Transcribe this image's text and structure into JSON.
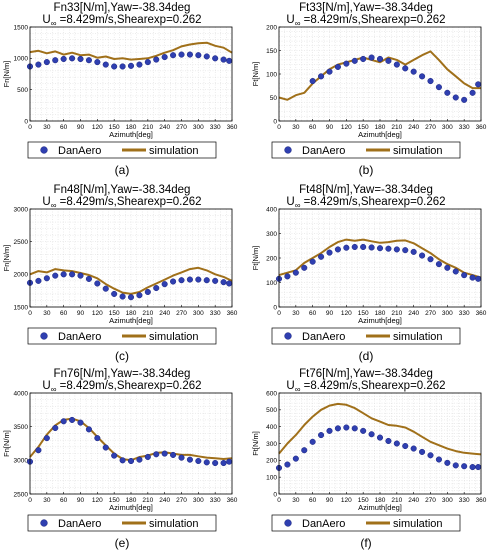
{
  "colors": {
    "danaero": "#2f3fb0",
    "danaero_edge": "#1a237e",
    "simulation": "#a0701a",
    "grid": "#d9d9d9",
    "axes": "#000000"
  },
  "legend": {
    "danaero": "DanAero",
    "simulation": "simulation"
  },
  "chart_data": [
    {
      "type": "line",
      "panel_label": "(a)",
      "title": "Fn33[N/m],Yaw=-38.34deg",
      "subtitle_prefix": "U",
      "subtitle_sub": "∞",
      "subtitle_rest": " =8.429m/s,Shearexp=0.262",
      "xlabel": "Azimuth[deg]",
      "ylabel": "Fn[N/m]",
      "xlim": [
        0,
        360
      ],
      "ylim": [
        0,
        1500
      ],
      "xticks": [
        0,
        30,
        60,
        90,
        120,
        150,
        180,
        210,
        240,
        270,
        300,
        330,
        360
      ],
      "yticks": [
        0,
        500,
        1000,
        1500
      ],
      "grid": true,
      "legend_position": "bottom",
      "series": [
        {
          "name": "DanAero",
          "marker": "circle",
          "x": [
            0,
            15,
            30,
            45,
            60,
            75,
            90,
            105,
            120,
            135,
            150,
            165,
            180,
            195,
            210,
            225,
            240,
            255,
            270,
            285,
            300,
            315,
            330,
            345,
            355
          ],
          "y": [
            870,
            900,
            940,
            970,
            990,
            1000,
            990,
            970,
            940,
            900,
            870,
            870,
            880,
            900,
            940,
            980,
            1020,
            1050,
            1060,
            1060,
            1050,
            1030,
            1000,
            980,
            960
          ]
        },
        {
          "name": "simulation",
          "marker": "none",
          "x": [
            0,
            15,
            30,
            45,
            60,
            75,
            90,
            105,
            120,
            135,
            150,
            165,
            180,
            195,
            210,
            225,
            240,
            255,
            270,
            285,
            300,
            315,
            330,
            345,
            360
          ],
          "y": [
            1100,
            1120,
            1080,
            1110,
            1060,
            1090,
            1050,
            1060,
            1010,
            1030,
            990,
            1000,
            980,
            990,
            1000,
            1040,
            1090,
            1130,
            1190,
            1220,
            1240,
            1250,
            1200,
            1170,
            1090
          ]
        }
      ]
    },
    {
      "type": "line",
      "panel_label": "(b)",
      "title": "Ft33[N/m],Yaw=-38.34deg",
      "subtitle_prefix": "U",
      "subtitle_sub": "∞",
      "subtitle_rest": " =8.429m/s,Shearexp=0.262",
      "xlabel": "Azimuth[deg]",
      "ylabel": "Ft[N/m]",
      "xlim": [
        0,
        360
      ],
      "ylim": [
        0,
        200
      ],
      "xticks": [
        0,
        30,
        60,
        90,
        120,
        150,
        180,
        210,
        240,
        270,
        300,
        330,
        360
      ],
      "yticks": [
        0,
        50,
        100,
        150,
        200
      ],
      "grid": true,
      "legend_position": "bottom",
      "series": [
        {
          "name": "DanAero",
          "marker": "circle",
          "x": [
            60,
            75,
            90,
            105,
            120,
            135,
            150,
            165,
            180,
            195,
            210,
            225,
            240,
            255,
            270,
            285,
            300,
            315,
            330,
            345,
            355
          ],
          "y": [
            85,
            95,
            105,
            115,
            122,
            128,
            132,
            135,
            132,
            128,
            120,
            112,
            105,
            95,
            85,
            72,
            60,
            50,
            45,
            60,
            78
          ]
        },
        {
          "name": "simulation",
          "marker": "none",
          "x": [
            0,
            15,
            30,
            45,
            60,
            75,
            90,
            105,
            120,
            135,
            150,
            165,
            180,
            195,
            210,
            225,
            240,
            255,
            270,
            285,
            300,
            315,
            330,
            345,
            360
          ],
          "y": [
            50,
            45,
            55,
            60,
            80,
            95,
            110,
            120,
            125,
            130,
            135,
            130,
            125,
            135,
            130,
            120,
            130,
            140,
            148,
            130,
            110,
            95,
            80,
            70,
            70
          ]
        }
      ]
    },
    {
      "type": "line",
      "panel_label": "(c)",
      "title": "Fn48[N/m],Yaw=-38.34deg",
      "subtitle_prefix": "U",
      "subtitle_sub": "∞",
      "subtitle_rest": " =8.429m/s,Shearexp=0.262",
      "xlabel": "Azimuth[deg]",
      "ylabel": "Fn[N/m]",
      "xlim": [
        0,
        360
      ],
      "ylim": [
        1500,
        3000
      ],
      "xticks": [
        0,
        30,
        60,
        90,
        120,
        150,
        180,
        210,
        240,
        270,
        300,
        330,
        360
      ],
      "yticks": [
        1500,
        2000,
        2500,
        3000
      ],
      "grid": true,
      "legend_position": "bottom",
      "series": [
        {
          "name": "DanAero",
          "marker": "circle",
          "x": [
            0,
            15,
            30,
            45,
            60,
            75,
            90,
            105,
            120,
            135,
            150,
            165,
            180,
            195,
            210,
            225,
            240,
            255,
            270,
            285,
            300,
            315,
            330,
            345,
            355
          ],
          "y": [
            1870,
            1900,
            1940,
            1980,
            2000,
            2000,
            1980,
            1930,
            1860,
            1780,
            1700,
            1660,
            1650,
            1680,
            1730,
            1790,
            1850,
            1890,
            1910,
            1920,
            1920,
            1910,
            1900,
            1880,
            1860
          ]
        },
        {
          "name": "simulation",
          "marker": "none",
          "x": [
            0,
            15,
            30,
            45,
            60,
            75,
            90,
            105,
            120,
            135,
            150,
            165,
            180,
            195,
            210,
            225,
            240,
            255,
            270,
            285,
            300,
            315,
            330,
            345,
            360
          ],
          "y": [
            2000,
            2050,
            2030,
            2080,
            2060,
            2050,
            2020,
            1990,
            1940,
            1850,
            1780,
            1720,
            1700,
            1730,
            1800,
            1860,
            1920,
            1980,
            2030,
            2080,
            2100,
            2060,
            2000,
            1960,
            1900
          ]
        }
      ]
    },
    {
      "type": "line",
      "panel_label": "(d)",
      "title": "Ft48[N/m],Yaw=-38.34deg",
      "subtitle_prefix": "U",
      "subtitle_sub": "∞",
      "subtitle_rest": " =8.429m/s,Shearexp=0.262",
      "xlabel": "Azimuth[deg]",
      "ylabel": "Ft[N/m]",
      "xlim": [
        0,
        360
      ],
      "ylim": [
        0,
        400
      ],
      "xticks": [
        0,
        30,
        60,
        90,
        120,
        150,
        180,
        210,
        240,
        270,
        300,
        330,
        360
      ],
      "yticks": [
        0,
        100,
        200,
        300,
        400
      ],
      "grid": true,
      "legend_position": "bottom",
      "series": [
        {
          "name": "DanAero",
          "marker": "circle",
          "x": [
            0,
            15,
            30,
            45,
            60,
            75,
            90,
            105,
            120,
            135,
            150,
            165,
            180,
            195,
            210,
            225,
            240,
            255,
            270,
            285,
            300,
            315,
            330,
            345,
            355
          ],
          "y": [
            115,
            125,
            140,
            160,
            185,
            205,
            222,
            235,
            242,
            245,
            245,
            243,
            240,
            238,
            235,
            232,
            225,
            210,
            195,
            175,
            160,
            145,
            130,
            120,
            115
          ]
        },
        {
          "name": "simulation",
          "marker": "none",
          "x": [
            0,
            15,
            30,
            45,
            60,
            75,
            90,
            105,
            120,
            135,
            150,
            165,
            180,
            195,
            210,
            225,
            240,
            255,
            270,
            285,
            300,
            315,
            330,
            345,
            360
          ],
          "y": [
            130,
            140,
            150,
            180,
            200,
            220,
            245,
            265,
            275,
            270,
            275,
            268,
            262,
            265,
            270,
            272,
            260,
            240,
            220,
            195,
            175,
            160,
            140,
            130,
            120
          ]
        }
      ]
    },
    {
      "type": "line",
      "panel_label": "(e)",
      "title": "Fn76[N/m],Yaw=-38.34deg",
      "subtitle_prefix": "U",
      "subtitle_sub": "∞",
      "subtitle_rest": " =8.429m/s,Shearexp=0.262",
      "xlabel": "Azimuth[deg]",
      "ylabel": "Fn[N/m]",
      "xlim": [
        0,
        360
      ],
      "ylim": [
        2500,
        4000
      ],
      "xticks": [
        0,
        30,
        60,
        90,
        120,
        150,
        180,
        210,
        240,
        270,
        300,
        330,
        360
      ],
      "yticks": [
        2500,
        3000,
        3500,
        4000
      ],
      "grid": true,
      "legend_position": "bottom",
      "series": [
        {
          "name": "DanAero",
          "marker": "circle",
          "x": [
            0,
            15,
            30,
            45,
            60,
            75,
            90,
            105,
            120,
            135,
            150,
            165,
            180,
            195,
            210,
            225,
            240,
            255,
            270,
            285,
            300,
            315,
            330,
            345,
            355
          ],
          "y": [
            2980,
            3150,
            3330,
            3480,
            3580,
            3600,
            3560,
            3460,
            3330,
            3190,
            3070,
            3000,
            2990,
            3010,
            3050,
            3090,
            3100,
            3080,
            3040,
            3010,
            2990,
            2970,
            2960,
            2960,
            2980
          ]
        },
        {
          "name": "simulation",
          "marker": "none",
          "x": [
            0,
            15,
            30,
            45,
            60,
            75,
            90,
            105,
            120,
            135,
            150,
            165,
            180,
            195,
            210,
            225,
            240,
            255,
            270,
            285,
            300,
            315,
            330,
            345,
            360
          ],
          "y": [
            3050,
            3200,
            3380,
            3520,
            3600,
            3620,
            3580,
            3480,
            3350,
            3220,
            3100,
            3020,
            3000,
            3050,
            3070,
            3110,
            3120,
            3100,
            3080,
            3080,
            3060,
            3040,
            3030,
            3020,
            3030
          ]
        }
      ]
    },
    {
      "type": "line",
      "panel_label": "(f)",
      "title": "Ft76[N/m],Yaw=-38.34deg",
      "subtitle_prefix": "U",
      "subtitle_sub": "∞",
      "subtitle_rest": " =8.429m/s,Shearexp=0.262",
      "xlabel": "Azimuth[deg]",
      "ylabel": "Ft[N/m]",
      "xlim": [
        0,
        360
      ],
      "ylim": [
        0,
        600
      ],
      "xticks": [
        0,
        30,
        60,
        90,
        120,
        150,
        180,
        210,
        240,
        270,
        300,
        330,
        360
      ],
      "yticks": [
        0,
        100,
        200,
        300,
        400,
        500,
        600
      ],
      "grid": true,
      "legend_position": "bottom",
      "series": [
        {
          "name": "DanAero",
          "marker": "circle",
          "x": [
            0,
            15,
            30,
            45,
            60,
            75,
            90,
            105,
            120,
            135,
            150,
            165,
            180,
            195,
            210,
            225,
            240,
            255,
            270,
            285,
            300,
            315,
            330,
            345,
            355
          ],
          "y": [
            155,
            175,
            210,
            260,
            310,
            350,
            375,
            390,
            395,
            390,
            375,
            355,
            335,
            315,
            300,
            285,
            270,
            250,
            230,
            205,
            185,
            170,
            165,
            160,
            160
          ]
        },
        {
          "name": "simulation",
          "marker": "none",
          "x": [
            0,
            15,
            30,
            45,
            60,
            75,
            90,
            105,
            120,
            135,
            150,
            165,
            180,
            195,
            210,
            225,
            240,
            255,
            270,
            285,
            300,
            315,
            330,
            345,
            360
          ],
          "y": [
            240,
            300,
            350,
            410,
            460,
            500,
            525,
            535,
            530,
            510,
            480,
            450,
            430,
            410,
            405,
            395,
            370,
            340,
            310,
            290,
            270,
            255,
            245,
            240,
            235
          ]
        }
      ]
    }
  ]
}
